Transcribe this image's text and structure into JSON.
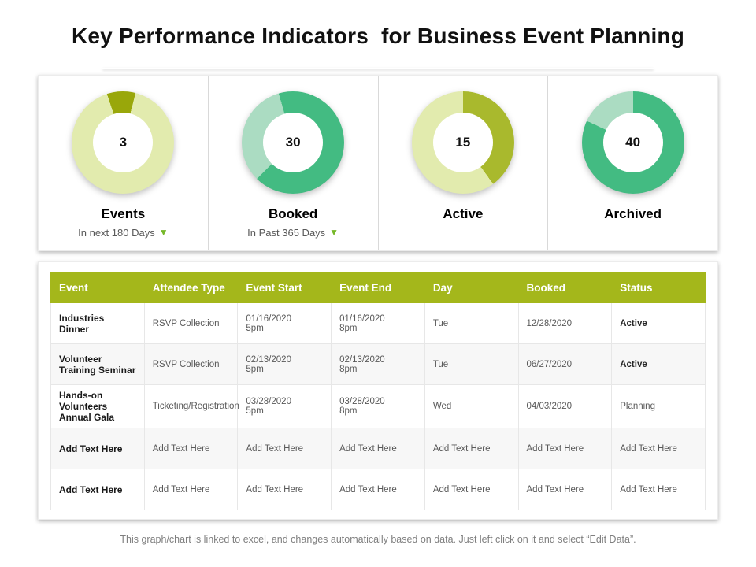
{
  "slide": {
    "title": "Key Performance Indicators  for Business Event Planning",
    "footer": "This graph/chart is linked to excel, and changes automatically based on data. Just left click on it and select “Edit Data”."
  },
  "colors": {
    "header_bg": "#a4b71b",
    "arrow": "#76b82a",
    "green": "#43bb82",
    "mint": "#abdcc2",
    "olive": "#a9b92d",
    "pale_green": "#e2ebae",
    "dark_olive": "#99a70a"
  },
  "chart_data": {
    "type": "pie",
    "variant": "donut-set",
    "donuts": [
      {
        "type": "donut",
        "center_value": "3",
        "label": "Events",
        "subtitle": "In next 180 Days",
        "arrow": "▼",
        "start_angle": -18,
        "segments": [
          {
            "name": "highlight",
            "pct": 9,
            "color": "#99a70a"
          },
          {
            "name": "remainder",
            "pct": 91,
            "color": "#e2ebae"
          }
        ]
      },
      {
        "type": "donut",
        "center_value": "30",
        "label": "Booked",
        "subtitle": "In Past 365 Days",
        "arrow": "▼",
        "start_angle": 225,
        "segments": [
          {
            "name": "highlight",
            "pct": 33,
            "color": "#abdcc2"
          },
          {
            "name": "remainder",
            "pct": 67,
            "color": "#43bb82"
          }
        ]
      },
      {
        "type": "donut",
        "center_value": "15",
        "label": "Active",
        "subtitle": "",
        "arrow": "",
        "start_angle": 0,
        "segments": [
          {
            "name": "highlight",
            "pct": 40,
            "color": "#a9b92d"
          },
          {
            "name": "remainder",
            "pct": 60,
            "color": "#e2ebae"
          }
        ]
      },
      {
        "type": "donut",
        "center_value": "40",
        "label": "Archived",
        "subtitle": "",
        "arrow": "",
        "start_angle": 295,
        "segments": [
          {
            "name": "highlight",
            "pct": 18,
            "color": "#abdcc2"
          },
          {
            "name": "remainder",
            "pct": 82,
            "color": "#43bb82"
          }
        ]
      }
    ]
  },
  "table": {
    "columns": [
      "Event",
      "Attendee Type",
      "Event Start",
      "Event End",
      "Day",
      "Booked",
      "Status"
    ],
    "rows": [
      [
        "Industries Dinner",
        "RSVP Collection",
        "01/16/2020      5pm",
        "01/16/2020      8pm",
        "Tue",
        "12/28/2020",
        "Active"
      ],
      [
        "Volunteer Training Seminar",
        "RSVP Collection",
        "02/13/2020      5pm",
        "02/13/2020      8pm",
        "Tue",
        "06/27/2020",
        "Active"
      ],
      [
        "Hands-on Volunteers Annual Gala",
        "Ticketing/Registration",
        "03/28/2020      5pm",
        "03/28/2020      8pm",
        "Wed",
        "04/03/2020",
        "Planning"
      ],
      [
        "Add Text Here",
        "Add Text Here",
        "Add Text Here",
        "Add Text Here",
        "Add Text Here",
        "Add Text Here",
        "Add Text Here"
      ],
      [
        "Add Text Here",
        "Add Text Here",
        "Add Text Here",
        "Add Text Here",
        "Add Text Here",
        "Add Text Here",
        "Add Text Here"
      ]
    ]
  }
}
